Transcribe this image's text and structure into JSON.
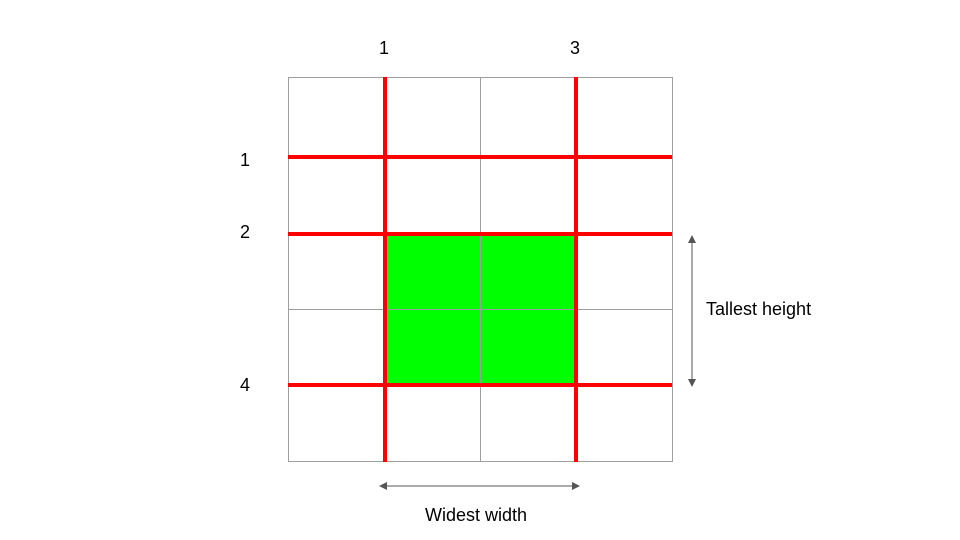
{
  "diagram": {
    "column_labels": [
      "1",
      "3"
    ],
    "row_labels": [
      "1",
      "2",
      "4"
    ],
    "height_label": "Tallest height",
    "width_label": "Widest width"
  },
  "colors": {
    "grid_line": "#9e9e9e",
    "highlight_line": "#ff0000",
    "highlight_fill": "#00ff00",
    "arrow": "#555555",
    "text": "#000000"
  }
}
